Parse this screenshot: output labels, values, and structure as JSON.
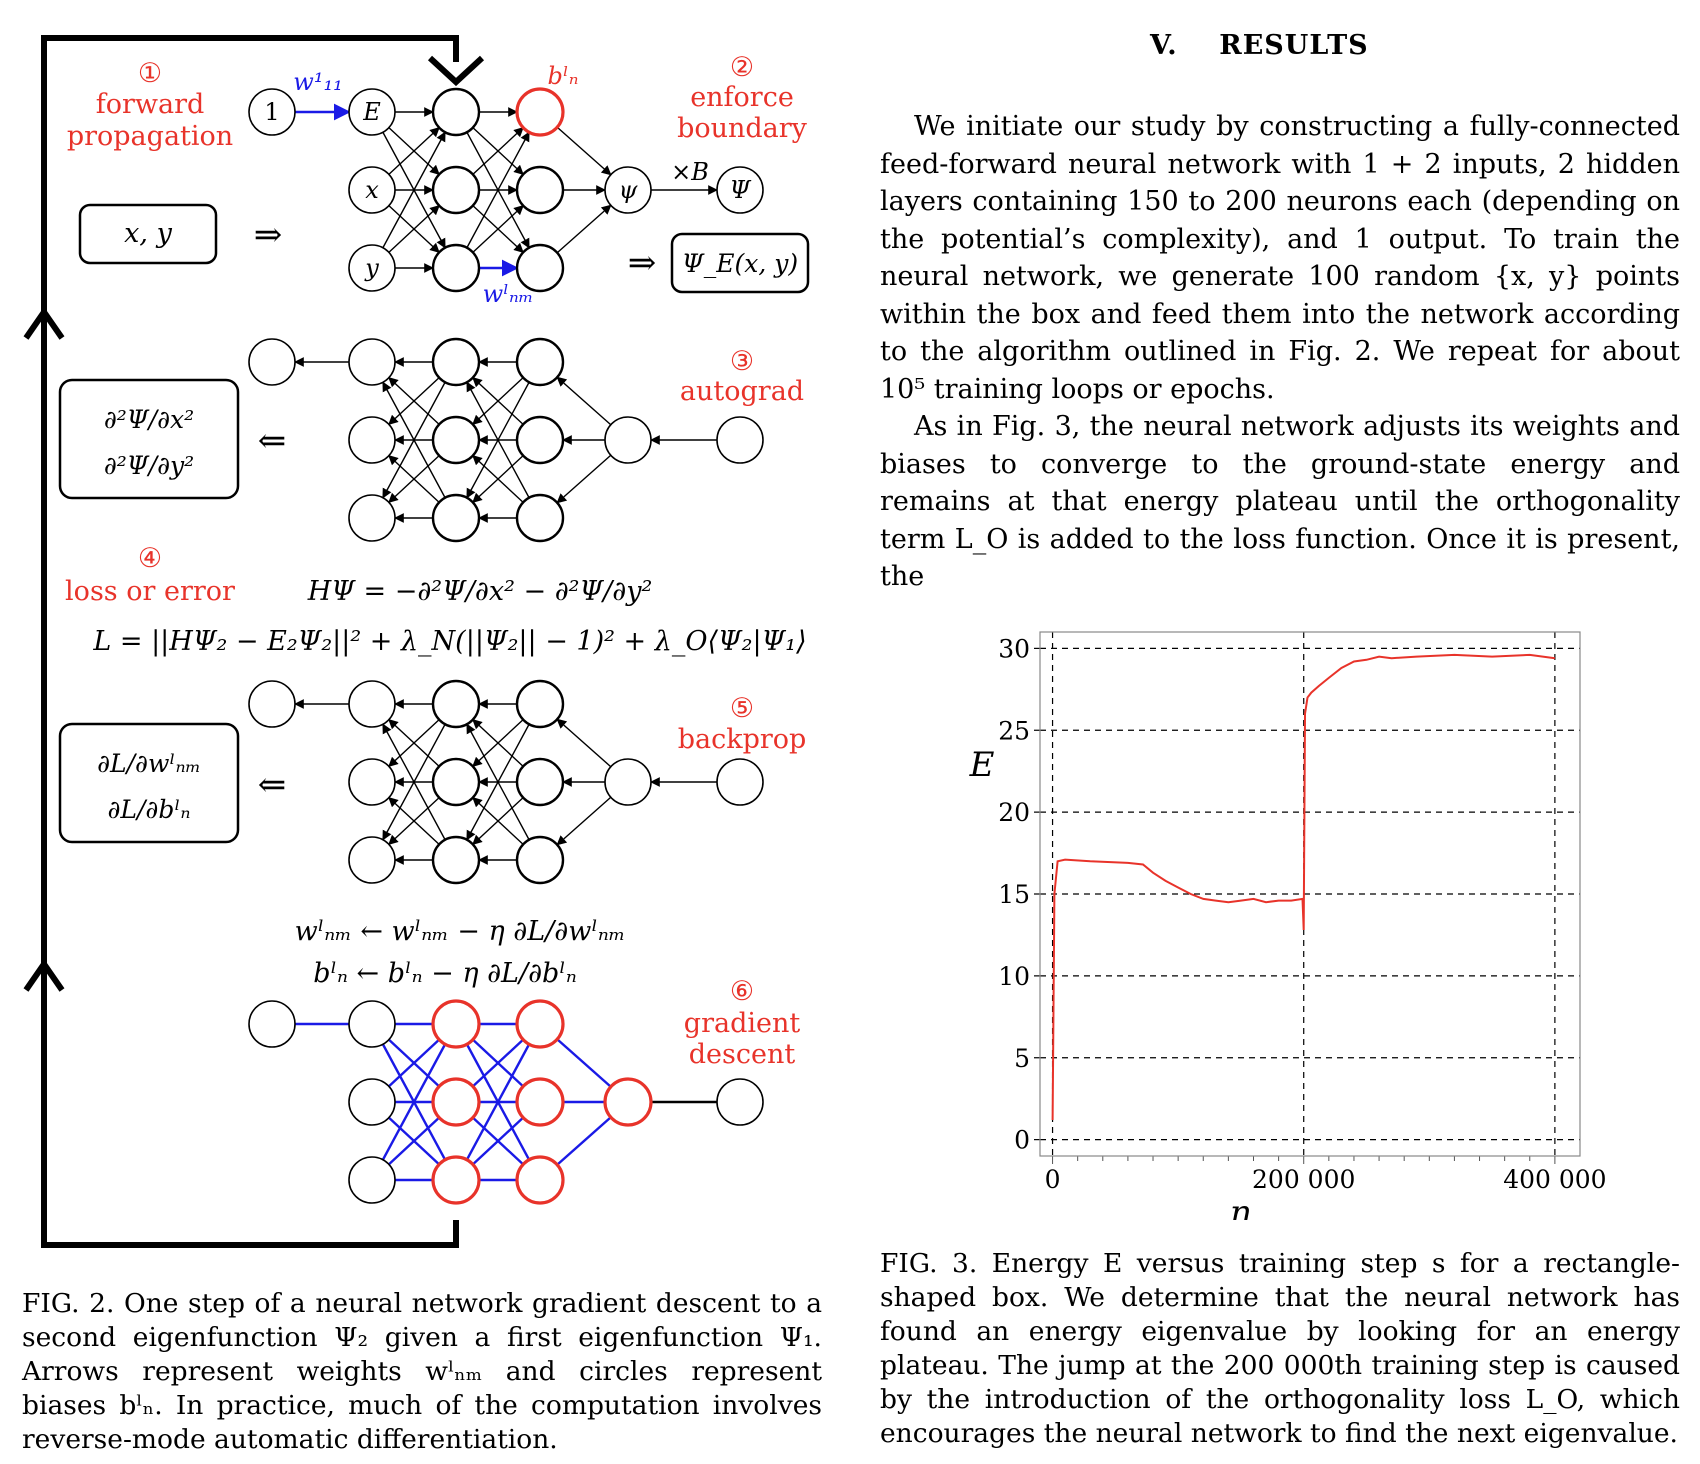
{
  "section": {
    "number": "V.",
    "title": "RESULTS"
  },
  "paragraphs": [
    "We initiate our study by constructing a fully-connected feed-forward neural network with 1 + 2 inputs, 2 hidden layers containing 150 to 200 neurons each (depending on the potential’s complexity), and 1 output. To train the neural network, we generate 100 random {x, y} points within the box and feed them into the network according to the algorithm outlined in Fig. 2. We repeat for about 10⁵ training loops or epochs.",
    "As in Fig. 3, the neural network adjusts its weights and biases to converge to the ground-state energy and remains at that energy plateau until the orthogonality term L_O is added to the loss function. Once it is present, the"
  ],
  "fig2": {
    "steps": [
      {
        "num": "①",
        "lines": [
          "forward",
          "propagation"
        ]
      },
      {
        "num": "②",
        "lines": [
          "enforce",
          "boundary"
        ]
      },
      {
        "num": "③",
        "lines": [
          "autograd"
        ]
      },
      {
        "num": "④",
        "lines": [
          "loss or error"
        ]
      },
      {
        "num": "⑤",
        "lines": [
          "backprop"
        ]
      },
      {
        "num": "⑥",
        "lines": [
          "gradient",
          "descent"
        ]
      }
    ],
    "inputs_box": "x, y",
    "output_box": "Ψ_E(x, y)",
    "second_derivs": [
      "∂²Ψ/∂x²",
      "∂²Ψ/∂y²"
    ],
    "param_derivs": [
      "∂L/∂wˡₙₘ",
      "∂L/∂bˡₙ"
    ],
    "implies": "⇒",
    "implied_by": "⇐",
    "node_one": "1",
    "node_E": "E",
    "node_x": "x",
    "node_y": "y",
    "node_psi": "ψ",
    "node_Psi": "Ψ",
    "times_B": "×B",
    "w11": "w¹₁₁",
    "wnm": "wˡₙₘ",
    "bn": "bˡₙ",
    "eq_H": "HΨ = −∂²Ψ/∂x² − ∂²Ψ/∂y²",
    "eq_L": "L = ||HΨ₂ − E₂Ψ₂||² + λ_N(||Ψ₂|| − 1)² + λ_O⟨Ψ₂|Ψ₁⟩",
    "update_w": "wˡₙₘ ← wˡₙₘ − η ∂L/∂wˡₙₘ",
    "update_b": "bˡₙ ← bˡₙ − η ∂L/∂bˡₙ"
  },
  "caption2": "FIG. 2. One step of a neural network gradient descent to a second eigenfunction Ψ₂ given a first eigenfunction Ψ₁. Arrows represent weights wˡₙₘ and circles represent biases bˡₙ. In practice, much of the computation involves reverse-mode automatic differentiation.",
  "caption3": "FIG. 3. Energy E versus training step s for a rectangle-shaped box. We determine that the neural network has found an energy eigenvalue by looking for an energy plateau. The jump at the 200 000th training step is caused by the introduction of the orthogonality loss L_O, which encourages the neural network to find the next eigenvalue.",
  "colors": {
    "red": "#e8332a",
    "blue": "#1a1ae6",
    "black": "#000000"
  },
  "chart_data": {
    "type": "line",
    "xlabel": "n",
    "ylabel": "E",
    "xlim": [
      -10000,
      420000
    ],
    "ylim": [
      -1,
      31
    ],
    "xticks": [
      0,
      200000,
      400000
    ],
    "xtick_labels": [
      "0",
      "200 000",
      "400 000"
    ],
    "yticks": [
      0,
      5,
      10,
      15,
      20,
      25,
      30
    ],
    "ytick_labels": [
      "0",
      "5",
      "10",
      "15",
      "20",
      "25",
      "30"
    ],
    "grid": true,
    "series": [
      {
        "color": "#e8332a",
        "x": [
          0,
          1500,
          4000,
          10000,
          30000,
          60000,
          72000,
          80000,
          90000,
          100000,
          110000,
          120000,
          130000,
          140000,
          150000,
          160000,
          170000,
          180000,
          190000,
          199000,
          200000,
          201000,
          203000,
          206000,
          212000,
          220000,
          230000,
          240000,
          250000,
          260000,
          270000,
          290000,
          320000,
          350000,
          380000,
          400000
        ],
        "y": [
          1.2,
          15.0,
          17.0,
          17.1,
          17.0,
          16.9,
          16.8,
          16.3,
          15.8,
          15.4,
          15.0,
          14.7,
          14.6,
          14.5,
          14.6,
          14.7,
          14.5,
          14.6,
          14.6,
          14.7,
          12.8,
          26.0,
          27.0,
          27.3,
          27.7,
          28.2,
          28.8,
          29.2,
          29.3,
          29.5,
          29.4,
          29.5,
          29.6,
          29.5,
          29.6,
          29.4
        ]
      }
    ]
  }
}
